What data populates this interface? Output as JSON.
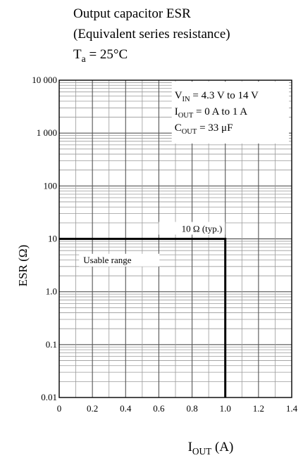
{
  "title_lines": [
    "Output capacitor ESR",
    "(Equivalent series resistance)",
    "T_a = 25°C"
  ],
  "chart_data": {
    "type": "line",
    "title": "Output capacitor ESR (Equivalent series resistance) Ta = 25°C",
    "xlabel": "I_OUT (A)",
    "ylabel": "ESR (Ω)",
    "xlim": [
      0,
      1.4
    ],
    "ylim": [
      0.01,
      10000
    ],
    "yscale": "log",
    "grid": true,
    "x_ticks": [
      0,
      0.2,
      0.4,
      0.6,
      0.8,
      1.0,
      1.2,
      1.4
    ],
    "x_tick_labels": [
      "0",
      "0.2",
      "0.4",
      "0.6",
      "0.8",
      "1.0",
      "1.2",
      "1.4"
    ],
    "y_ticks": [
      0.01,
      0.1,
      1,
      10,
      100,
      1000,
      10000
    ],
    "y_tick_labels": [
      "0.01",
      "0.1",
      "1.0",
      "10",
      "100",
      "1 000",
      "10 000"
    ],
    "series": [
      {
        "x": [
          0,
          1.0,
          1.0
        ],
        "y": [
          10,
          10,
          0.01
        ]
      }
    ],
    "annotations": {
      "conditions": [
        "V_IN = 4.3 V to 14 V",
        "I_OUT = 0 A to 1 A",
        "C_OUT = 33 μF"
      ],
      "typ_label": "10 Ω (typ.)",
      "region_label": "Usable range"
    }
  }
}
